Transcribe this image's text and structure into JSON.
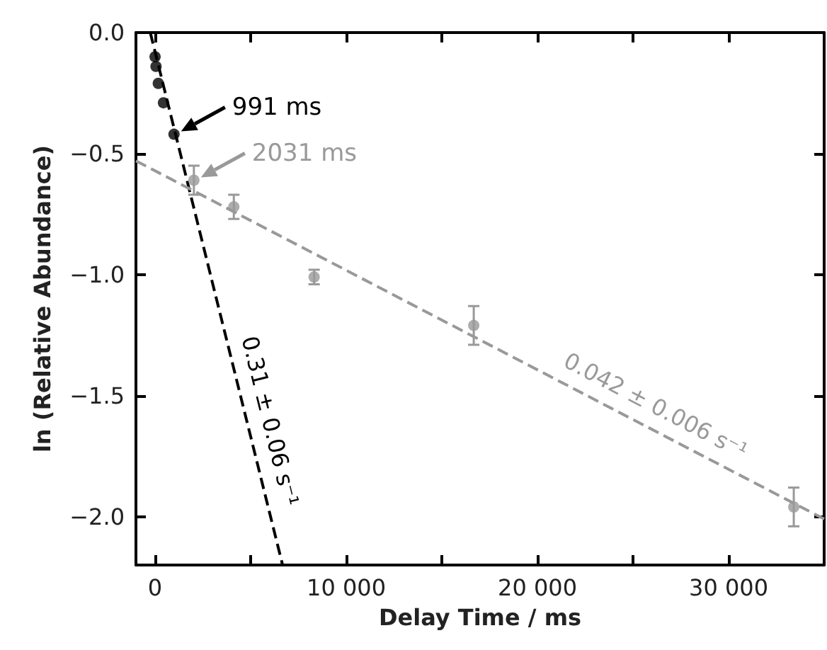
{
  "chart_data": {
    "type": "scatter",
    "xlabel": "Delay Time / ms",
    "ylabel": "ln (Relative Abundance)",
    "xlim": [
      -1000,
      35000
    ],
    "ylim": [
      -2.2,
      0
    ],
    "xticks": [
      {
        "value": 0,
        "label": "0"
      },
      {
        "value": 5000,
        "label": null
      },
      {
        "value": 10000,
        "label": "10 000"
      },
      {
        "value": 15000,
        "label": null
      },
      {
        "value": 20000,
        "label": "20 000"
      },
      {
        "value": 25000,
        "label": null
      },
      {
        "value": 30000,
        "label": "30 000"
      }
    ],
    "yticks": [
      {
        "value": 0,
        "label": "0.0"
      },
      {
        "value": -0.5,
        "label": "−0.5"
      },
      {
        "value": -1,
        "label": "−1.0"
      },
      {
        "value": -1.5,
        "label": "−1.5"
      },
      {
        "value": -2,
        "label": "−2.0"
      }
    ],
    "series": [
      {
        "type": "scatter",
        "color": "#000000",
        "x": [
          0,
          50,
          170,
          440,
          991
        ],
        "values": [
          -0.1,
          -0.14,
          -0.21,
          -0.29,
          -0.42
        ]
      },
      {
        "type": "line",
        "name": "0.31 ± 0.06 s⁻¹",
        "color": "#000000",
        "line_style": "dashed",
        "marker": "none",
        "x": [
          -250,
          6670
        ],
        "values": [
          0,
          -2.2
        ]
      },
      {
        "type": "scatter",
        "color": "#999999",
        "x": [
          2031,
          4120,
          8320,
          16670,
          33410
        ],
        "values": [
          -0.61,
          -0.72,
          -1.01,
          -1.21,
          -1.96
        ],
        "errors": [
          0.06,
          0.05,
          0.03,
          0.08,
          0.08
        ]
      },
      {
        "type": "line",
        "name": "0.042 ± 0.006 s⁻¹",
        "color": "#999999",
        "line_style": "dashed",
        "marker": "none",
        "x": [
          -1000,
          35000
        ],
        "values": [
          -0.53,
          -2.01
        ]
      }
    ],
    "marker": "circle",
    "grid": false,
    "legend": false,
    "annotations": [
      {
        "text": "991 ms",
        "x": 991,
        "y": -0.42
      },
      {
        "text": "2031 ms",
        "x": 2031,
        "y": -0.61
      }
    ]
  }
}
